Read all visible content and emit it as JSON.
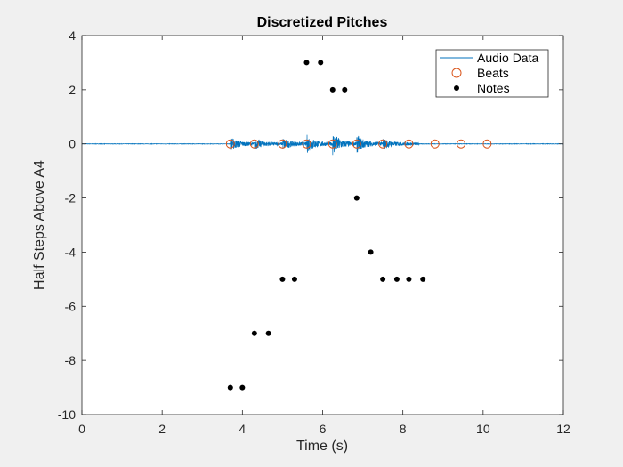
{
  "chart_data": {
    "type": "scatter",
    "title": "Discretized Pitches",
    "xlabel": "Time (s)",
    "ylabel": "Half Steps Above A4",
    "xlim": [
      0,
      12
    ],
    "ylim": [
      -10,
      4
    ],
    "xticks": [
      0,
      2,
      4,
      6,
      8,
      10,
      12
    ],
    "yticks": [
      -10,
      -8,
      -6,
      -4,
      -2,
      0,
      2,
      4
    ],
    "grid": false,
    "legend_position": "top-right",
    "series": [
      {
        "name": "Audio Data",
        "kind": "line",
        "color": "#0072bd",
        "description_segments": [
          {
            "start": 3.7,
            "amplitude": 0.22
          },
          {
            "start": 4.3,
            "amplitude": 0.18
          },
          {
            "start": 5.0,
            "amplitude": 0.2
          },
          {
            "start": 5.6,
            "amplitude": 0.32
          },
          {
            "start": 6.25,
            "amplitude": 0.4
          },
          {
            "start": 6.85,
            "amplitude": 0.3
          },
          {
            "start": 7.5,
            "amplitude": 0.18
          }
        ],
        "signal_end": 8.4,
        "x_range": [
          0,
          12
        ]
      },
      {
        "name": "Beats",
        "kind": "open-circle",
        "color": "#d95319",
        "x": [
          3.7,
          4.3,
          5.0,
          5.6,
          6.25,
          6.85,
          7.5,
          8.15,
          8.8,
          9.45,
          10.1
        ],
        "y": [
          0,
          0,
          0,
          0,
          0,
          0,
          0,
          0,
          0,
          0,
          0
        ]
      },
      {
        "name": "Notes",
        "kind": "filled-dot",
        "color": "#000000",
        "x": [
          3.7,
          4.0,
          4.3,
          4.65,
          5.0,
          5.3,
          5.6,
          5.95,
          6.25,
          6.55,
          6.85,
          7.2,
          7.5,
          7.85,
          8.15,
          8.5
        ],
        "y": [
          -9,
          -9,
          -7,
          -7,
          -5,
          -5,
          3,
          3,
          2,
          2,
          -2,
          -4,
          -5,
          -5,
          -5,
          -5
        ]
      }
    ]
  }
}
